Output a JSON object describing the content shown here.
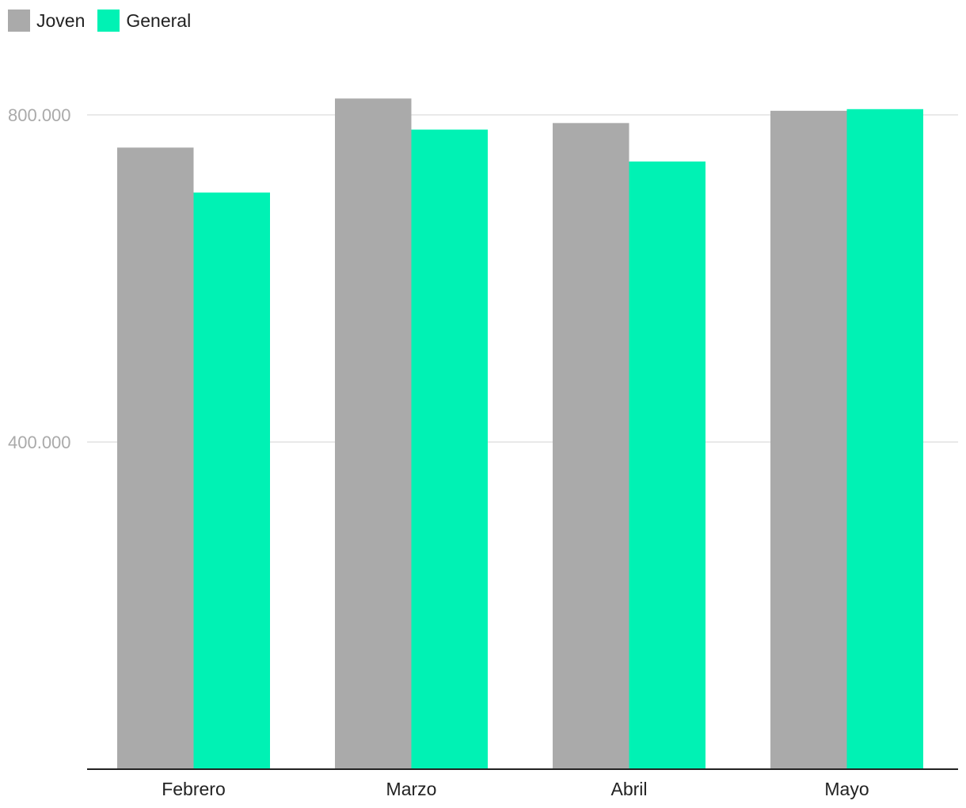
{
  "chart_data": {
    "type": "bar",
    "categories": [
      "Febrero",
      "Marzo",
      "Abril",
      "Mayo"
    ],
    "series": [
      {
        "name": "Joven",
        "color": "#aaaaaa",
        "values": [
          760000,
          820000,
          790000,
          805000
        ]
      },
      {
        "name": "General",
        "color": "#00f2b4",
        "values": [
          705000,
          782000,
          743000,
          807000
        ]
      }
    ],
    "ylim": [
      0,
      800000
    ],
    "yticks": [
      {
        "value": 400000,
        "label": "400.000"
      },
      {
        "value": 800000,
        "label": "800.000"
      }
    ],
    "grid": true,
    "legend_position": "top-left",
    "colors": {
      "grid": "#e2e2e2",
      "axis": "#222222",
      "tick_text": "#aaaaaa",
      "label_text": "#222222"
    }
  }
}
